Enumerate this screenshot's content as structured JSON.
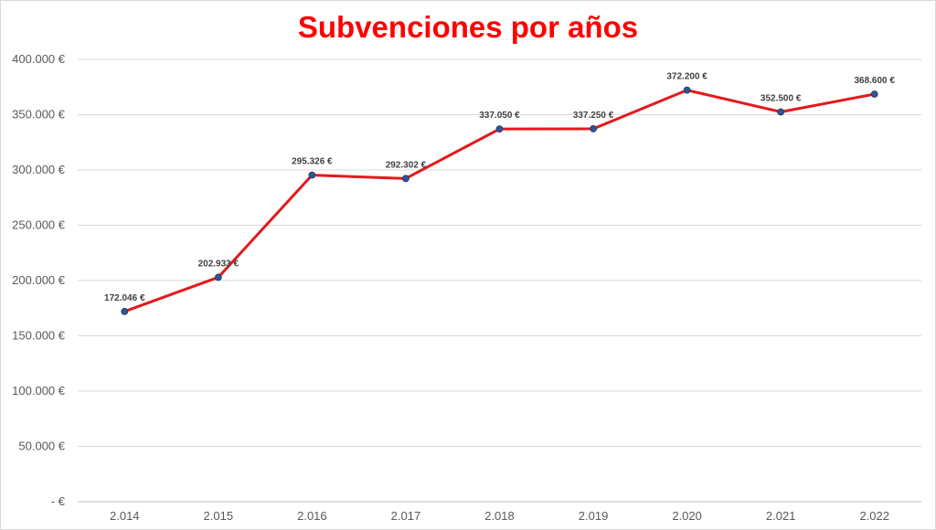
{
  "chart_data": {
    "type": "line",
    "title": "Subvenciones por años",
    "xlabel": "",
    "ylabel": "",
    "categories": [
      "2.014",
      "2.015",
      "2.016",
      "2.017",
      "2.018",
      "2.019",
      "2.020",
      "2.021",
      "2.022"
    ],
    "series": [
      {
        "values": [
          172046,
          202933,
          295326,
          292302,
          337050,
          337250,
          372200,
          352500,
          368600
        ],
        "data_labels": [
          "172.046 €",
          "202.933 €",
          "295.326 €",
          "292.302 €",
          "337.050 €",
          "337.250 €",
          "372.200 €",
          "352.500 €",
          "368.600 €"
        ]
      }
    ],
    "ylim": [
      0,
      400000
    ],
    "y_ticks": [
      0,
      50000,
      100000,
      150000,
      200000,
      250000,
      300000,
      350000,
      400000
    ],
    "y_tick_labels": [
      "-  €",
      "50.000 €",
      "100.000 €",
      "150.000 €",
      "200.000 €",
      "250.000 €",
      "300.000 €",
      "350.000 €",
      "400.000 €"
    ],
    "grid": true,
    "legend": "none",
    "colors": {
      "title": "#ff0000",
      "line": "#e31a1c",
      "marker": "#2f5597",
      "grid": "#d9d9d9"
    }
  }
}
